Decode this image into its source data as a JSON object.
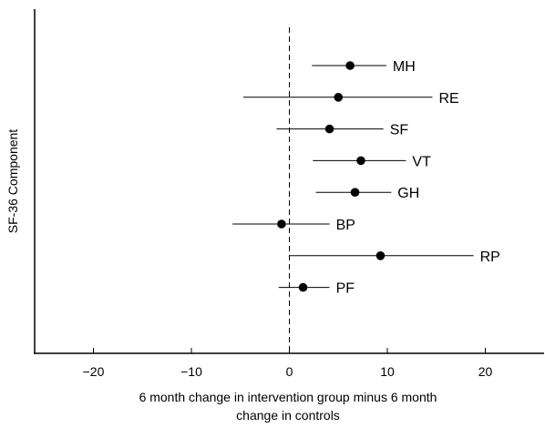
{
  "chart_data": {
    "type": "scatter",
    "subtype": "forest-plot",
    "xlabel_lines": [
      "6 month change in intervention group minus 6 month",
      "change in controls"
    ],
    "ylabel": "SF-36 Component",
    "xlim": [
      -26,
      26
    ],
    "xticks": [
      -20,
      -10,
      0,
      10,
      20
    ],
    "xtick_labels": [
      "−20",
      "−10",
      "0",
      "10",
      "20"
    ],
    "reference_line": {
      "x": 0,
      "style": "dashed"
    },
    "grid": false,
    "series": [
      {
        "label": "MH",
        "estimate": 6.2,
        "ci_low": 2.3,
        "ci_high": 9.9
      },
      {
        "label": "RE",
        "estimate": 5.0,
        "ci_low": -4.7,
        "ci_high": 14.6
      },
      {
        "label": "SF",
        "estimate": 4.1,
        "ci_low": -1.3,
        "ci_high": 9.6
      },
      {
        "label": "VT",
        "estimate": 7.3,
        "ci_low": 2.4,
        "ci_high": 11.9
      },
      {
        "label": "GH",
        "estimate": 6.7,
        "ci_low": 2.7,
        "ci_high": 10.4
      },
      {
        "label": "BP",
        "estimate": -0.8,
        "ci_low": -5.8,
        "ci_high": 4.1
      },
      {
        "label": "RP",
        "estimate": 9.3,
        "ci_low": 0.0,
        "ci_high": 18.8
      },
      {
        "label": "PF",
        "estimate": 1.4,
        "ci_low": -1.1,
        "ci_high": 4.1
      }
    ],
    "colors": {
      "marker": "#000000",
      "line": "#000000"
    }
  }
}
